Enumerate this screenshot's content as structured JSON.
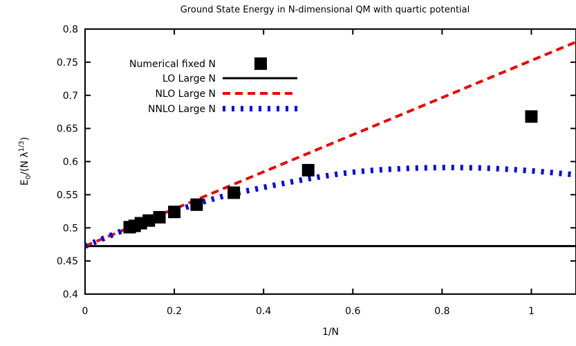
{
  "chart_data": {
    "type": "scatter",
    "title": "Ground State Energy in N-dimensional QM with quartic potential",
    "xlabel": "1/N",
    "ylabel_main": "E",
    "ylabel_sub": "0",
    "ylabel_mid": "/(N λ",
    "ylabel_sup": "1/3",
    "ylabel_end": ")",
    "xlim": [
      0,
      1.1
    ],
    "ylim": [
      0.4,
      0.8
    ],
    "x_ticks": [
      {
        "value": 0,
        "label": "0"
      },
      {
        "value": 0.2,
        "label": "0.2"
      },
      {
        "value": 0.4,
        "label": "0.4"
      },
      {
        "value": 0.6,
        "label": "0.6"
      },
      {
        "value": 0.8,
        "label": "0.8"
      },
      {
        "value": 1.0,
        "label": "1"
      }
    ],
    "y_ticks": [
      {
        "value": 0.4,
        "label": "0.4"
      },
      {
        "value": 0.45,
        "label": "0.45"
      },
      {
        "value": 0.5,
        "label": "0.5"
      },
      {
        "value": 0.55,
        "label": "0.55"
      },
      {
        "value": 0.6,
        "label": "0.6"
      },
      {
        "value": 0.65,
        "label": "0.65"
      },
      {
        "value": 0.7,
        "label": "0.7"
      },
      {
        "value": 0.75,
        "label": "0.75"
      },
      {
        "value": 0.8,
        "label": "0.8"
      }
    ],
    "grid": false,
    "legend_position": "top-left",
    "series": [
      {
        "name": "Numerical fixed N",
        "kind": "points",
        "color": "#000000",
        "x": [
          1.0,
          0.5,
          0.3333,
          0.25,
          0.2,
          0.1667,
          0.1429,
          0.125,
          0.1111,
          0.1
        ],
        "y": [
          0.668,
          0.587,
          0.553,
          0.535,
          0.524,
          0.516,
          0.511,
          0.507,
          0.503,
          0.501
        ]
      },
      {
        "name": "LO Large N",
        "kind": "line",
        "color": "#000000",
        "dash": "solid",
        "x": [
          0,
          1.1
        ],
        "y": [
          0.4725,
          0.4725
        ]
      },
      {
        "name": "NLO Large N",
        "kind": "line",
        "color": "#ee0000",
        "dash": "dashed",
        "x": [
          0,
          1.1
        ],
        "y": [
          0.4725,
          0.7805
        ]
      },
      {
        "name": "NNLO Large N",
        "kind": "line",
        "color": "#0000ee",
        "dash": "dotted",
        "x": [
          0,
          0.1,
          0.2,
          0.3,
          0.4,
          0.5,
          0.6,
          0.7,
          0.8,
          0.9,
          1.0,
          1.1
        ],
        "y": [
          0.4725,
          0.5,
          0.525,
          0.546,
          0.561,
          0.574,
          0.584,
          0.589,
          0.591,
          0.59,
          0.586,
          0.58
        ]
      }
    ]
  }
}
